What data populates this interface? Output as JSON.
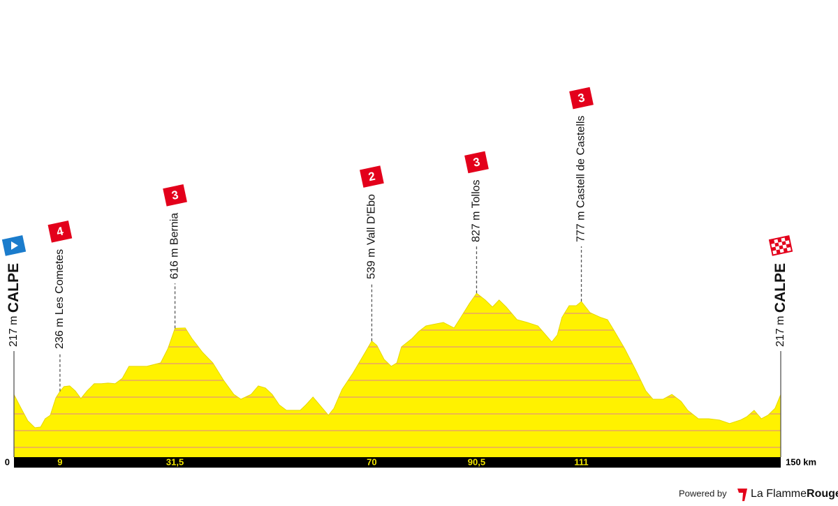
{
  "chart_data": {
    "type": "area",
    "x": [
      0,
      1.4,
      2.7,
      4.1,
      5.2,
      6.1,
      7.1,
      8.2,
      9,
      9.8,
      10.9,
      12,
      13.1,
      14.3,
      15.7,
      17.1,
      18.4,
      19.8,
      21.2,
      22.5,
      26,
      28.7,
      30.1,
      31.5,
      33.5,
      34.8,
      36.9,
      38.9,
      41,
      43,
      44.4,
      46.4,
      47.8,
      49.2,
      50.5,
      51.9,
      53.3,
      56,
      57.1,
      58.5,
      59.8,
      61.5,
      62.6,
      64.2,
      66.3,
      68.3,
      70,
      71,
      72.4,
      73.8,
      74.9,
      75.8,
      77.9,
      79.2,
      80.6,
      82,
      84,
      86.1,
      87.4,
      89.1,
      90.5,
      92.2,
      93.6,
      94.9,
      96.3,
      98.4,
      100.4,
      102.5,
      103.8,
      105.2,
      106.3,
      107.2,
      108.6,
      110,
      111,
      112.7,
      114.8,
      116.1,
      117.5,
      119.5,
      121.6,
      123.6,
      125,
      127,
      128.7,
      130.5,
      131.8,
      133.9,
      135.9,
      138,
      140,
      142.1,
      143.4,
      144.8,
      146.2,
      147.5,
      148.9,
      150
    ],
    "values": [
      217,
      134,
      59,
      17,
      21,
      71,
      92,
      197,
      236,
      265,
      269,
      239,
      193,
      239,
      282,
      282,
      286,
      282,
      315,
      387,
      387,
      408,
      492,
      616,
      618,
      555,
      471,
      408,
      303,
      218,
      189,
      218,
      269,
      256,
      218,
      155,
      122,
      122,
      155,
      202,
      155,
      92,
      134,
      248,
      345,
      450,
      539,
      513,
      429,
      387,
      408,
      504,
      555,
      597,
      630,
      639,
      651,
      618,
      681,
      765,
      827,
      786,
      744,
      786,
      744,
      668,
      651,
      630,
      584,
      534,
      576,
      681,
      752,
      752,
      777,
      710,
      681,
      668,
      597,
      492,
      366,
      239,
      189,
      189,
      218,
      176,
      122,
      71,
      71,
      63,
      42,
      63,
      84,
      122,
      71,
      92,
      134,
      217
    ],
    "color": "#fff200",
    "xlim": [
      0,
      150
    ],
    "ylim": [
      -160,
      1000
    ],
    "xticks": [
      0,
      9,
      {
        "value": 31.5,
        "label": "31,5"
      },
      70,
      {
        "value": 90.5,
        "label": "90,5"
      },
      111,
      {
        "value": 150,
        "label": "150 km"
      }
    ],
    "markers": {
      "x": [
        0,
        9,
        31.5,
        70,
        90.5,
        111,
        150
      ],
      "elevations": [
        217,
        236,
        616,
        539,
        827,
        777,
        217
      ],
      "elevation_labels": [
        "217 m",
        "236 m",
        "616 m",
        "539 m",
        "827 m",
        "777 m",
        "217 m"
      ],
      "names": [
        "CALPE",
        "Les Cometes",
        "Bernia",
        "Vall D'Ebo",
        "Tollos",
        "Castell de Castells",
        "CALPE"
      ],
      "categories": [
        null,
        "4",
        "3",
        "2",
        "3",
        "3",
        null
      ]
    }
  },
  "footer": {
    "powered_by": "Powered by",
    "brand": "La Flamme",
    "brand_bold": "Rouge"
  }
}
